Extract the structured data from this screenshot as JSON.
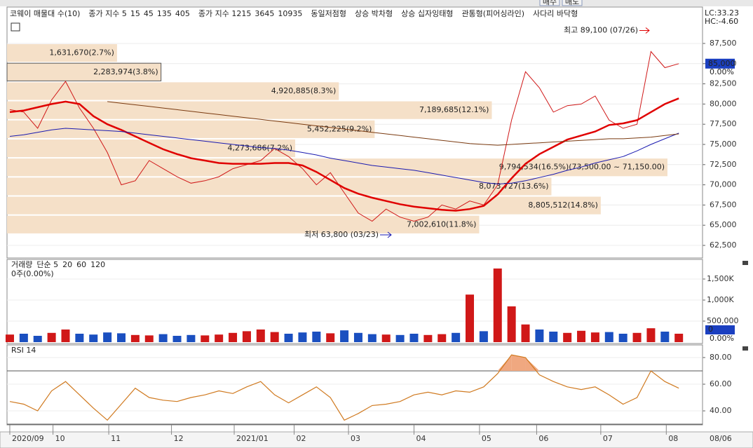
{
  "toolbar": {
    "buttons": [
      "매수",
      "매도"
    ]
  },
  "legend": [
    {
      "text": "코웨이 매물대 수(10)",
      "color": "#000000"
    },
    {
      "text": "종가 지수 5",
      "color": "#666666"
    },
    {
      "text": "15",
      "color": "#e07000"
    },
    {
      "text": "45",
      "color": "#c00000"
    },
    {
      "text": "135",
      "color": "#0000a0"
    },
    {
      "text": "405",
      "color": "#7a3a10"
    },
    {
      "text": "종가 지수 1215",
      "color": "#666666"
    },
    {
      "text": "3645",
      "color": "#c09000"
    },
    {
      "text": "10935",
      "color": "#800000"
    },
    {
      "text": "동일저점형",
      "color": "#a00000"
    },
    {
      "text": "상승 박차형",
      "color": "#a00000"
    },
    {
      "text": "상승 십자잉태형",
      "color": "#a00000"
    },
    {
      "text": "관통형(피어싱라인)",
      "color": "#a00000"
    },
    {
      "text": "사다리 바닥형",
      "color": "#a00000"
    }
  ],
  "chart_data": [
    {
      "type": "line",
      "x": [
        0,
        1,
        2,
        3,
        4,
        5,
        6,
        7,
        8,
        9,
        10,
        11,
        12,
        13,
        14,
        15,
        16,
        17,
        18,
        19,
        20,
        21,
        22,
        23,
        24,
        25,
        26,
        27,
        28,
        29,
        30,
        31,
        32,
        33,
        34,
        35,
        36,
        37,
        38,
        39,
        40,
        41,
        42,
        43,
        44,
        45,
        46,
        47,
        48
      ],
      "xlim": [
        -0.2,
        49.7
      ],
      "xticks": [
        {
          "value": 0,
          "label": "2020/09"
        },
        {
          "value": 3.1,
          "label": "10"
        },
        {
          "value": 7.1,
          "label": "11"
        },
        {
          "value": 11.6,
          "label": "12"
        },
        {
          "value": 16.1,
          "label": "2021/01"
        },
        {
          "value": 20.4,
          "label": "02"
        },
        {
          "value": 24.3,
          "label": "03"
        },
        {
          "value": 29,
          "label": "04"
        },
        {
          "value": 33.7,
          "label": "05"
        },
        {
          "value": 37.8,
          "label": "06"
        },
        {
          "value": 42.4,
          "label": "07"
        },
        {
          "value": 47.1,
          "label": "08"
        }
      ],
      "x_end_label": "08/06",
      "ylim": [
        60940,
        92010
      ],
      "yticks": [
        {
          "value": 87500,
          "label": "87,500"
        },
        {
          "value": 85000,
          "label": "85,000"
        },
        {
          "value": 82500,
          "label": "82,500"
        },
        {
          "value": 80000,
          "label": "80,000"
        },
        {
          "value": 77500,
          "label": "77,500"
        },
        {
          "value": 75000,
          "label": "75,000"
        },
        {
          "value": 72500,
          "label": "72,500"
        },
        {
          "value": 70000,
          "label": "70,000"
        },
        {
          "value": 67500,
          "label": "67,500"
        },
        {
          "value": 65000,
          "label": "65,000"
        },
        {
          "value": 62500,
          "label": "62,500"
        }
      ],
      "series": [
        {
          "color": "#d01818",
          "width": 1,
          "values": [
            79300,
            79000,
            77000,
            80500,
            82800,
            79500,
            77000,
            74000,
            70000,
            70500,
            73000,
            72000,
            71000,
            70200,
            70500,
            71000,
            72000,
            72500,
            73000,
            74500,
            73500,
            72000,
            70000,
            71500,
            69000,
            66500,
            65500,
            67000,
            66000,
            65500,
            66000,
            67500,
            67000,
            68000,
            67500,
            70000,
            78000,
            84000,
            82000,
            79000,
            79800,
            80000,
            81000,
            78000,
            77000,
            77500,
            86500,
            84500,
            85000
          ]
        },
        {
          "color": "#e00000",
          "width": 2.5,
          "values": [
            79000,
            79200,
            79600,
            80000,
            80300,
            80000,
            78500,
            77500,
            76800,
            76000,
            75200,
            74400,
            73800,
            73300,
            73000,
            72700,
            72600,
            72600,
            72600,
            72700,
            72700,
            72400,
            71600,
            70600,
            69600,
            68900,
            68400,
            68000,
            67600,
            67300,
            67100,
            66900,
            66800,
            67000,
            67400,
            68800,
            70800,
            72600,
            73800,
            74700,
            75600,
            76100,
            76600,
            77400,
            77600,
            78000,
            79000,
            80000,
            80700
          ]
        },
        {
          "color": "#1a1ab0",
          "width": 1,
          "values": [
            76000,
            76200,
            76500,
            76800,
            77000,
            76900,
            76800,
            76700,
            76600,
            76400,
            76200,
            76000,
            75800,
            75600,
            75400,
            75200,
            75000,
            74800,
            74600,
            74500,
            74300,
            74000,
            73700,
            73300,
            73000,
            72700,
            72400,
            72200,
            72000,
            71800,
            71500,
            71200,
            70900,
            70600,
            70300,
            70100,
            70200,
            70500,
            70900,
            71300,
            71800,
            72200,
            72700,
            73100,
            73500,
            74200,
            75000,
            75700,
            76400
          ]
        },
        {
          "color": "#7a3a10",
          "width": 1,
          "values": [
            null,
            null,
            null,
            null,
            null,
            null,
            null,
            80300,
            80100,
            79900,
            79700,
            79500,
            79300,
            79100,
            78900,
            78700,
            78500,
            78300,
            78100,
            77900,
            77700,
            77500,
            77300,
            77100,
            76900,
            76700,
            76500,
            76300,
            76100,
            75900,
            75700,
            75500,
            75300,
            75100,
            75000,
            74900,
            75000,
            75100,
            75200,
            75300,
            75400,
            75500,
            75600,
            75700,
            75700,
            75800,
            75900,
            76100,
            76300
          ]
        }
      ],
      "volume_profile": {
        "color": "#f5e0c8",
        "price_bins": [
          87500,
          85140,
          82780,
          80420,
          78060,
          75700,
          73340,
          70980,
          68620,
          66260,
          63900
        ],
        "volumes": [
          1631670,
          2283974,
          4920885,
          7189685,
          5452225,
          4273686,
          9794534,
          8073727,
          8805512,
          7002610
        ],
        "labels": [
          "1,631,670(2.7%)",
          "2,283,974(3.8%)",
          "4,920,885(8.3%)",
          "7,189,685(12.1%)",
          "5,452,225(9.2%)",
          "4,273,686(7.2%)",
          "9,794,534(16.5%)(73,500.00 ~ 71,150.00)",
          "8,073,727(13.6%)",
          "8,805,512(14.8%)",
          "7,002,610(11.8%)"
        ]
      },
      "high": {
        "value": 89100,
        "label": "최고 89,100 (07/26)"
      },
      "low": {
        "value": 63800,
        "label": "최저 63,800 (03/23)"
      },
      "current": {
        "value": 85000,
        "label": "85,000"
      },
      "change": "0.00%",
      "lc": "LC:33.23",
      "hc": "HC:-4.60"
    },
    {
      "type": "bar",
      "legend": [
        {
          "text": "거래량",
          "color": "#008080"
        },
        {
          "text": "단순 5",
          "color": "#a000a0"
        },
        {
          "text": "20",
          "color": "#c09000"
        },
        {
          "text": "60",
          "color": "#008000"
        },
        {
          "text": "120",
          "color": "#666666"
        }
      ],
      "info": "0주(0.00%)",
      "up_color": "#d01818",
      "down_color": "#1a4fc0",
      "values": [
        180000,
        200000,
        150000,
        220000,
        300000,
        200000,
        180000,
        230000,
        210000,
        170000,
        160000,
        190000,
        150000,
        170000,
        160000,
        180000,
        220000,
        260000,
        300000,
        240000,
        200000,
        230000,
        250000,
        210000,
        280000,
        220000,
        190000,
        180000,
        170000,
        200000,
        170000,
        190000,
        220000,
        1130000,
        260000,
        1750000,
        850000,
        420000,
        300000,
        250000,
        220000,
        270000,
        230000,
        240000,
        200000,
        220000,
        330000,
        250000,
        200000
      ],
      "ylim": [
        0,
        1933000
      ],
      "yticks": [
        {
          "value": 1500000,
          "label": "1,500K"
        },
        {
          "value": 1000000,
          "label": "1,000K"
        },
        {
          "value": 500000,
          "label": "500,000"
        }
      ],
      "current_label": "0",
      "change": "0.00%"
    },
    {
      "type": "line",
      "title": "RSI 14",
      "color": "#d07a20",
      "fill_color": "#f0a880",
      "values": [
        47,
        45,
        40,
        55,
        62,
        52,
        42,
        33,
        45,
        57,
        50,
        48,
        47,
        50,
        52,
        55,
        53,
        58,
        62,
        52,
        46,
        52,
        58,
        50,
        33,
        38,
        44,
        45,
        47,
        52,
        54,
        52,
        55,
        54,
        58,
        68,
        82,
        80,
        67,
        62,
        58,
        56,
        58,
        52,
        45,
        50,
        70,
        62,
        57
      ],
      "levels": [
        70,
        30
      ],
      "ylim": [
        29.5,
        88.4
      ],
      "yticks": [
        {
          "value": 80,
          "label": "80.00"
        },
        {
          "value": 60,
          "label": "60.00"
        },
        {
          "value": 40,
          "label": "40.00"
        }
      ]
    }
  ]
}
